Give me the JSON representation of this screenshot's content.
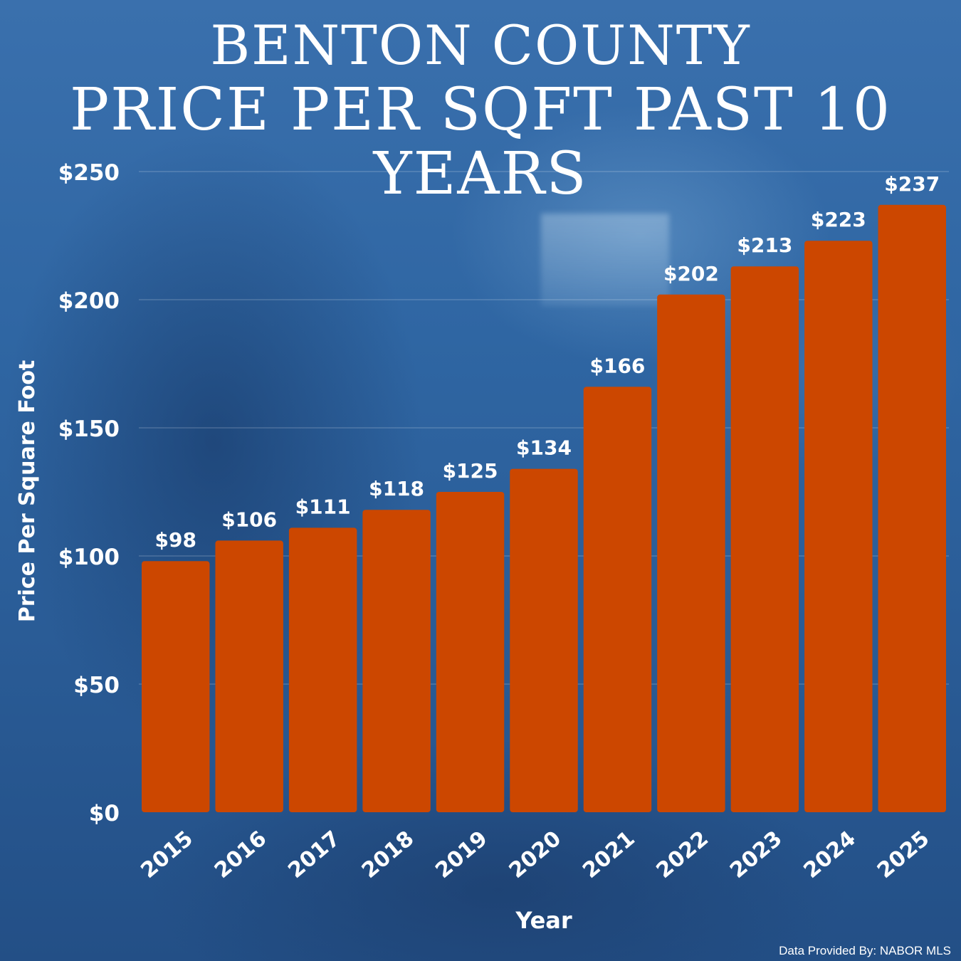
{
  "header": {
    "title_line1": "BENTON COUNTY",
    "title_line2": "PRICE PER SQFT PAST 10 YEARS"
  },
  "footer": {
    "credit": "Data Provided By: NABOR MLS"
  },
  "colors": {
    "bar": "#cc4700",
    "text": "#ffffff",
    "grid": "rgba(255,255,255,0.28)"
  },
  "chart_data": {
    "type": "bar",
    "title": "BENTON COUNTY PRICE PER SQFT PAST 10 YEARS",
    "xlabel": "Year",
    "ylabel": "Price Per Square Foot",
    "categories": [
      "2015",
      "2016",
      "2017",
      "2018",
      "2019",
      "2020",
      "2021",
      "2022",
      "2023",
      "2024",
      "2025"
    ],
    "values": [
      98,
      106,
      111,
      118,
      125,
      134,
      166,
      202,
      213,
      223,
      237
    ],
    "value_labels": [
      "$98",
      "$106",
      "$111",
      "$118",
      "$125",
      "$134",
      "$166",
      "$202",
      "$213",
      "$223",
      "$237"
    ],
    "ylim": [
      0,
      250
    ],
    "yticks": [
      0,
      50,
      100,
      150,
      200,
      250
    ],
    "ytick_labels": [
      "$0",
      "$50",
      "$100",
      "$150",
      "$200",
      "$250"
    ],
    "grid": true,
    "legend": "none"
  }
}
